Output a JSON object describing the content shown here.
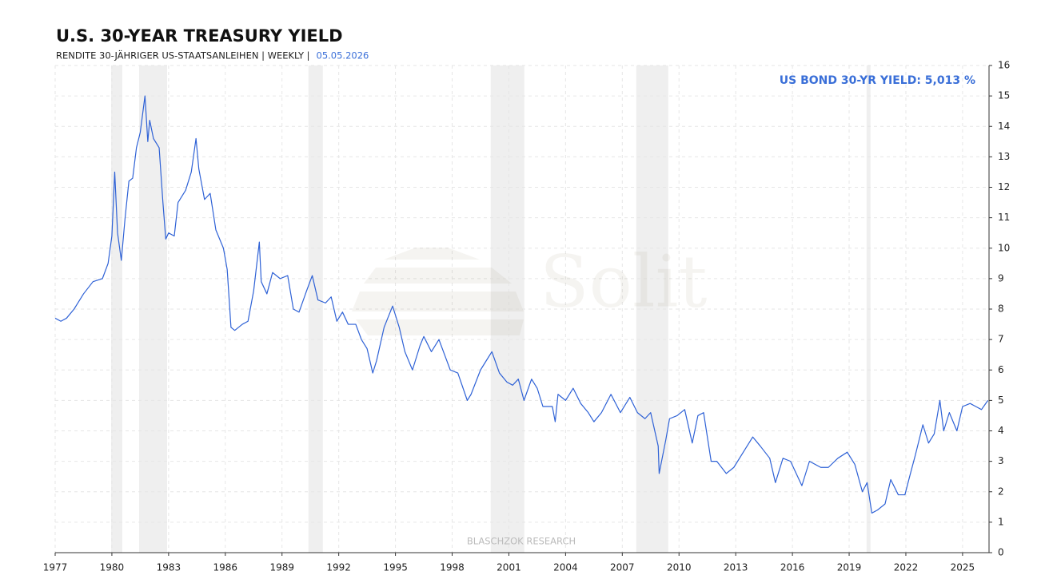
{
  "chart_data": {
    "type": "line",
    "title": "U.S. 30-YEAR TREASURY YIELD",
    "subtitle": "RENDITE 30-JÄHRIGER US-STAATSANLEIHEN | WEEKLY |",
    "date": "05.05.2026",
    "annotation": "US BOND 30-YR YIELD: 5,013 %",
    "source": "BLASCHZOK RESEARCH",
    "logo": "Solit",
    "grid": true,
    "xlim": [
      1977,
      2026.4
    ],
    "xticks": [
      1977,
      1980,
      1983,
      1986,
      1989,
      1992,
      1995,
      1998,
      2001,
      2004,
      2007,
      2010,
      2013,
      2016,
      2019,
      2022,
      2025
    ],
    "ylim": [
      0,
      16
    ],
    "yticks": [
      0,
      1,
      2,
      3,
      4,
      5,
      6,
      7,
      8,
      9,
      10,
      11,
      12,
      13,
      14,
      15,
      16
    ],
    "recession_color": "#efefef",
    "recessions": [
      [
        1979.96,
        1980.55
      ],
      [
        1981.44,
        1982.92
      ],
      [
        1990.4,
        1991.16
      ],
      [
        2000.04,
        2001.82
      ],
      [
        2007.74,
        2009.43
      ],
      [
        2019.92,
        2020.13
      ]
    ],
    "series": [
      {
        "name": "US BOND 30-YR YIELD",
        "color": "#2f62d6",
        "x": [
          1977.0,
          1977.3,
          1977.6,
          1978.0,
          1978.5,
          1979.0,
          1979.5,
          1979.8,
          1980.0,
          1980.15,
          1980.3,
          1980.5,
          1980.7,
          1980.9,
          1981.1,
          1981.3,
          1981.5,
          1981.75,
          1981.9,
          1982.0,
          1982.2,
          1982.5,
          1982.7,
          1982.85,
          1983.0,
          1983.3,
          1983.5,
          1983.9,
          1984.2,
          1984.45,
          1984.6,
          1984.9,
          1985.2,
          1985.5,
          1985.9,
          1986.1,
          1986.3,
          1986.5,
          1986.9,
          1987.2,
          1987.5,
          1987.8,
          1987.9,
          1988.2,
          1988.5,
          1988.9,
          1989.3,
          1989.6,
          1989.9,
          1990.3,
          1990.6,
          1990.9,
          1991.3,
          1991.6,
          1991.9,
          1992.2,
          1992.5,
          1992.9,
          1993.2,
          1993.5,
          1993.8,
          1994.0,
          1994.4,
          1994.85,
          1995.2,
          1995.5,
          1995.9,
          1996.3,
          1996.5,
          1996.9,
          1997.3,
          1997.6,
          1997.9,
          1998.3,
          1998.8,
          1999.0,
          1999.5,
          1999.9,
          2000.1,
          2000.5,
          2000.9,
          2001.2,
          2001.5,
          2001.8,
          2002.2,
          2002.5,
          2002.8,
          2003.3,
          2003.45,
          2003.6,
          2004.0,
          2004.4,
          2004.8,
          2005.2,
          2005.5,
          2005.9,
          2006.4,
          2006.9,
          2007.4,
          2007.8,
          2008.2,
          2008.5,
          2008.9,
          2008.95,
          2009.3,
          2009.5,
          2009.9,
          2010.3,
          2010.7,
          2011.0,
          2011.3,
          2011.7,
          2012.0,
          2012.5,
          2012.9,
          2013.4,
          2013.9,
          2014.3,
          2014.8,
          2015.1,
          2015.5,
          2015.9,
          2016.5,
          2016.9,
          2017.5,
          2017.9,
          2018.4,
          2018.9,
          2019.3,
          2019.7,
          2019.95,
          2020.2,
          2020.5,
          2020.9,
          2021.2,
          2021.6,
          2021.95,
          2022.2,
          2022.5,
          2022.9,
          2023.2,
          2023.5,
          2023.8,
          2024.0,
          2024.3,
          2024.7,
          2025.0,
          2025.4,
          2025.7,
          2026.0,
          2026.34
        ],
        "values": [
          7.7,
          7.6,
          7.7,
          8.0,
          8.5,
          8.9,
          9.0,
          9.5,
          10.4,
          12.5,
          10.5,
          9.6,
          11.0,
          12.2,
          12.3,
          13.3,
          13.8,
          15.0,
          13.5,
          14.2,
          13.6,
          13.3,
          11.5,
          10.3,
          10.5,
          10.4,
          11.5,
          11.9,
          12.5,
          13.6,
          12.6,
          11.6,
          11.8,
          10.6,
          10.0,
          9.3,
          7.4,
          7.3,
          7.5,
          7.6,
          8.6,
          10.2,
          8.9,
          8.5,
          9.2,
          9.0,
          9.1,
          8.0,
          7.9,
          8.6,
          9.1,
          8.3,
          8.2,
          8.4,
          7.6,
          7.9,
          7.5,
          7.5,
          7.0,
          6.7,
          5.9,
          6.3,
          7.4,
          8.1,
          7.4,
          6.6,
          6.0,
          6.8,
          7.1,
          6.6,
          7.0,
          6.5,
          6.0,
          5.9,
          5.0,
          5.2,
          6.0,
          6.4,
          6.6,
          5.9,
          5.6,
          5.5,
          5.7,
          5.0,
          5.7,
          5.4,
          4.8,
          4.8,
          4.3,
          5.2,
          5.0,
          5.4,
          4.9,
          4.6,
          4.3,
          4.6,
          5.2,
          4.6,
          5.1,
          4.6,
          4.4,
          4.6,
          3.5,
          2.6,
          3.7,
          4.4,
          4.5,
          4.7,
          3.6,
          4.5,
          4.6,
          3.0,
          3.0,
          2.6,
          2.8,
          3.3,
          3.8,
          3.5,
          3.1,
          2.3,
          3.1,
          3.0,
          2.2,
          3.0,
          2.8,
          2.8,
          3.1,
          3.3,
          2.9,
          2.0,
          2.3,
          1.3,
          1.4,
          1.6,
          2.4,
          1.9,
          1.9,
          2.5,
          3.2,
          4.2,
          3.6,
          3.9,
          5.0,
          4.0,
          4.6,
          4.0,
          4.8,
          4.9,
          4.8,
          4.7,
          5.0
        ]
      }
    ]
  }
}
